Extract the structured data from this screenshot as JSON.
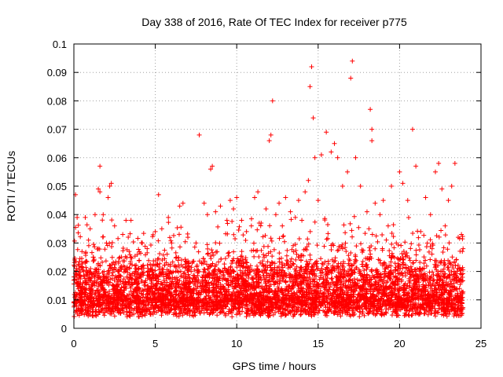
{
  "chart_data": {
    "type": "scatter",
    "title": "Day 338 of 2016, Rate Of TEC Index for receiver p775",
    "xlabel": "GPS time / hours",
    "ylabel": "ROTI / TECUs",
    "xlim": [
      0,
      25
    ],
    "ylim": [
      0,
      0.1
    ],
    "xticks": [
      0,
      5,
      10,
      15,
      20,
      25
    ],
    "xtick_labels": [
      "0",
      "5",
      "10",
      "15",
      "20",
      "25"
    ],
    "yticks": [
      0,
      0.01,
      0.02,
      0.03,
      0.04,
      0.05,
      0.06,
      0.07,
      0.08,
      0.09,
      0.1
    ],
    "ytick_labels": [
      "0",
      "0.01",
      "0.02",
      "0.03",
      "0.04",
      "0.05",
      "0.06",
      "0.07",
      "0.08",
      "0.09",
      "0.1"
    ],
    "grid": true,
    "marker": "+",
    "color": "#ff0000",
    "series": [
      {
        "name": "ROTI",
        "points": [
          [
            0.0,
            0.009
          ],
          [
            0.1,
            0.047
          ],
          [
            0.2,
            0.039
          ],
          [
            0.3,
            0.022
          ],
          [
            0.5,
            0.027
          ],
          [
            0.7,
            0.039
          ],
          [
            0.9,
            0.031
          ],
          [
            1.0,
            0.035
          ],
          [
            1.2,
            0.025
          ],
          [
            1.3,
            0.04
          ],
          [
            1.5,
            0.049
          ],
          [
            1.6,
            0.048
          ],
          [
            1.6,
            0.057
          ],
          [
            1.8,
            0.04
          ],
          [
            2.0,
            0.03
          ],
          [
            2.1,
            0.046
          ],
          [
            2.2,
            0.05
          ],
          [
            2.3,
            0.051
          ],
          [
            2.5,
            0.036
          ],
          [
            2.7,
            0.02
          ],
          [
            3.0,
            0.033
          ],
          [
            3.2,
            0.038
          ],
          [
            3.5,
            0.025
          ],
          [
            3.8,
            0.02
          ],
          [
            4.2,
            0.03
          ],
          [
            4.5,
            0.028
          ],
          [
            4.8,
            0.022
          ],
          [
            5.0,
            0.034
          ],
          [
            5.2,
            0.047
          ],
          [
            5.4,
            0.035
          ],
          [
            5.8,
            0.039
          ],
          [
            6.0,
            0.03
          ],
          [
            6.3,
            0.025
          ],
          [
            6.5,
            0.043
          ],
          [
            6.7,
            0.044
          ],
          [
            7.0,
            0.032
          ],
          [
            7.2,
            0.02
          ],
          [
            7.5,
            0.03
          ],
          [
            7.7,
            0.068
          ],
          [
            8.0,
            0.044
          ],
          [
            8.2,
            0.04
          ],
          [
            8.4,
            0.056
          ],
          [
            8.5,
            0.057
          ],
          [
            8.7,
            0.041
          ],
          [
            9.0,
            0.043
          ],
          [
            9.4,
            0.038
          ],
          [
            9.6,
            0.045
          ],
          [
            9.8,
            0.042
          ],
          [
            10.0,
            0.046
          ],
          [
            10.3,
            0.038
          ],
          [
            10.6,
            0.034
          ],
          [
            10.9,
            0.036
          ],
          [
            11.1,
            0.046
          ],
          [
            11.3,
            0.048
          ],
          [
            11.5,
            0.037
          ],
          [
            11.8,
            0.042
          ],
          [
            12.0,
            0.066
          ],
          [
            12.1,
            0.068
          ],
          [
            12.2,
            0.08
          ],
          [
            12.4,
            0.04
          ],
          [
            12.6,
            0.044
          ],
          [
            12.8,
            0.036
          ],
          [
            13.0,
            0.046
          ],
          [
            13.3,
            0.041
          ],
          [
            13.6,
            0.039
          ],
          [
            13.8,
            0.045
          ],
          [
            14.0,
            0.038
          ],
          [
            14.2,
            0.048
          ],
          [
            14.4,
            0.052
          ],
          [
            14.5,
            0.085
          ],
          [
            14.6,
            0.092
          ],
          [
            14.7,
            0.074
          ],
          [
            14.8,
            0.06
          ],
          [
            15.0,
            0.045
          ],
          [
            15.2,
            0.061
          ],
          [
            15.5,
            0.069
          ],
          [
            15.8,
            0.062
          ],
          [
            16.0,
            0.065
          ],
          [
            16.2,
            0.06
          ],
          [
            16.5,
            0.05
          ],
          [
            16.8,
            0.055
          ],
          [
            17.0,
            0.088
          ],
          [
            17.1,
            0.094
          ],
          [
            17.3,
            0.06
          ],
          [
            17.6,
            0.05
          ],
          [
            18.0,
            0.041
          ],
          [
            18.2,
            0.077
          ],
          [
            18.3,
            0.07
          ],
          [
            18.3,
            0.066
          ],
          [
            18.5,
            0.044
          ],
          [
            18.8,
            0.04
          ],
          [
            19.0,
            0.045
          ],
          [
            19.3,
            0.036
          ],
          [
            19.5,
            0.05
          ],
          [
            19.8,
            0.03
          ],
          [
            20.0,
            0.055
          ],
          [
            20.2,
            0.051
          ],
          [
            20.5,
            0.045
          ],
          [
            20.8,
            0.07
          ],
          [
            21.0,
            0.057
          ],
          [
            21.3,
            0.034
          ],
          [
            21.6,
            0.046
          ],
          [
            21.9,
            0.04
          ],
          [
            22.2,
            0.055
          ],
          [
            22.4,
            0.058
          ],
          [
            22.6,
            0.049
          ],
          [
            22.8,
            0.036
          ],
          [
            23.0,
            0.045
          ],
          [
            23.2,
            0.05
          ],
          [
            23.4,
            0.058
          ],
          [
            23.6,
            0.032
          ],
          [
            23.8,
            0.033
          ],
          [
            23.9,
            0.028
          ]
        ]
      }
    ],
    "dense_band": {
      "x_range": [
        0,
        23.9
      ],
      "y_range": [
        0.004,
        0.025
      ],
      "density": "very high"
    }
  }
}
